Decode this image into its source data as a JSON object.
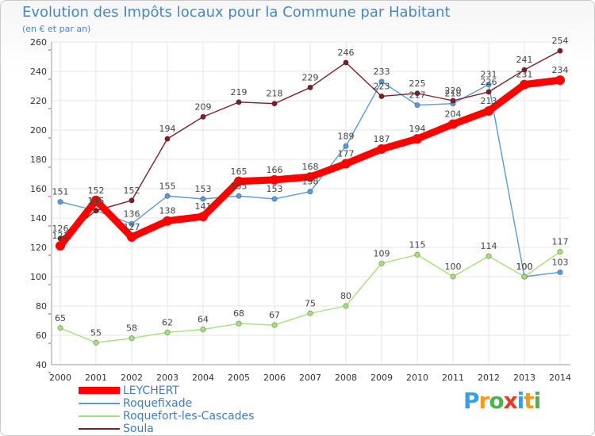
{
  "chart_data": {
    "type": "line",
    "title": "Evolution des Impôts locaux pour la Commune par Habitant",
    "subtitle": "(en € et par an)",
    "xlabel": "",
    "ylabel": "",
    "categories": [
      "2000",
      "2001",
      "2002",
      "2003",
      "2004",
      "2005",
      "2006",
      "2007",
      "2008",
      "2009",
      "2010",
      "2011",
      "2012",
      "2013",
      "2014"
    ],
    "ylim": [
      40,
      260
    ],
    "yticks": [
      40,
      60,
      80,
      100,
      120,
      140,
      160,
      180,
      200,
      220,
      240,
      260
    ],
    "grid": true,
    "series": [
      {
        "name": "LEYCHERT",
        "color": "#ff0000",
        "values": [
          121,
          152,
          127,
          138,
          141,
          165,
          166,
          168,
          177,
          187,
          194,
          204,
          213,
          231,
          234
        ]
      },
      {
        "name": "Roquefixade",
        "color": "#5b9bd5",
        "values": [
          151,
          145,
          136,
          155,
          153,
          155,
          153,
          158,
          189,
          233,
          217,
          218,
          231,
          100,
          103
        ]
      },
      {
        "name": "Roquefort-les-Cascades",
        "color": "#a6e07a",
        "values": [
          65,
          55,
          58,
          62,
          64,
          68,
          67,
          75,
          80,
          109,
          115,
          100,
          114,
          100,
          117
        ]
      },
      {
        "name": "Soula",
        "color": "#7a1f28",
        "values": [
          126,
          145,
          152,
          194,
          209,
          219,
          218,
          229,
          246,
          223,
          225,
          220,
          226,
          241,
          254
        ]
      }
    ]
  },
  "logo": {
    "text": "Proxiti",
    "colors": [
      "#3aa0dd",
      "#f29b1d",
      "#4bb34d",
      "#e23c2b",
      "#3aa0dd",
      "#f29b1d",
      "#4bb34d"
    ]
  }
}
